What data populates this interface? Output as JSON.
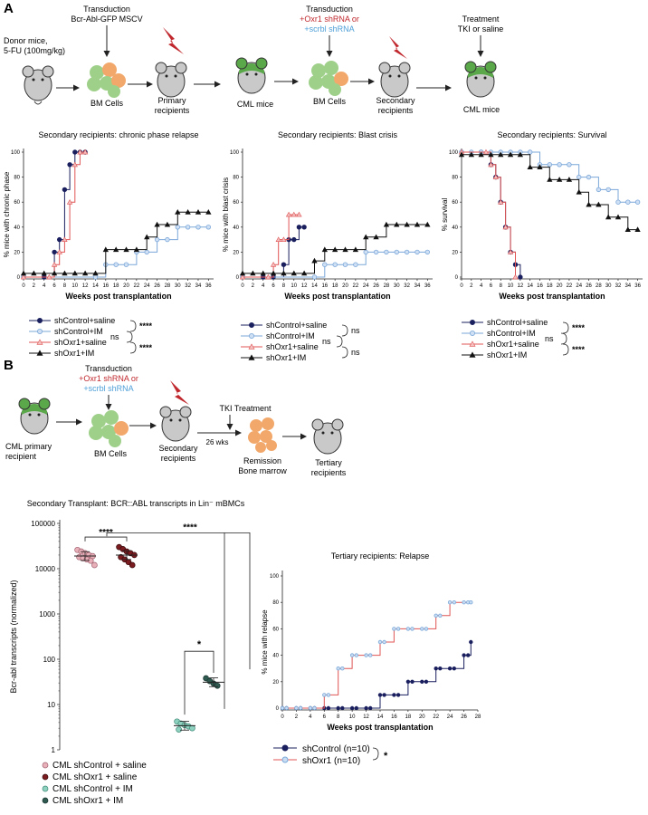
{
  "panels": {
    "a": {
      "letter": "A",
      "schematic": {
        "donor": "Donor mice,",
        "donor_dose": "5-FU (100mg/kg)",
        "transduction1": "Transduction",
        "transduction1_vector": "Bcr-Abl-GFP MSCV",
        "bm_cells_1": "BM Cells",
        "primary_1": "Primary",
        "primary_2": "recipients",
        "cml_mice_1": "CML mice",
        "transduction2": "Transduction",
        "transduction2_oxr1": "+Oxr1 shRNA or",
        "transduction2_scrbl": "+scrbl shRNA",
        "bm_cells_2": "BM Cells",
        "secondary_1": "Secondary",
        "secondary_2": "recipients",
        "treatment_1": "Treatment",
        "treatment_2": "TKI or saline",
        "cml_mice_2": "CML mice"
      },
      "legend": {
        "s1": "shControl+saline",
        "s2": "shControl+IM",
        "s3": "shOxr1+saline",
        "s4": "shOxr1+IM",
        "sig_top": "****",
        "sig_ns": "ns",
        "sig_bottom": "****",
        "sig_ns_a": "ns",
        "sig_ns_b": "ns"
      }
    },
    "b": {
      "letter": "B",
      "schematic": {
        "cml_1": "CML primary",
        "cml_2": "recipient",
        "transduction": "Transduction",
        "transduction_oxr1": "+Oxr1 shRNA or",
        "transduction_scrbl": "+scrbl shRNA",
        "bm_cells": "BM Cells",
        "secondary_1": "Secondary",
        "secondary_2": "recipients",
        "tki": "TKI Treatment",
        "weeks": "26 wks",
        "remission_1": "Remission",
        "remission_2": "Bone marrow",
        "tertiary_1": "Tertiary",
        "tertiary_2": "recipients"
      },
      "scatter_legend": {
        "g1": "CML shControl + saline",
        "g2": "CML shOxr1 + saline",
        "g3": "CML shControl + IM",
        "g4": "CML shOxr1 + IM"
      },
      "sig": {
        "s1": "****",
        "s2": "****",
        "s3": "*"
      },
      "relapse_legend": {
        "l1": "shControl (n=10)",
        "l2": "shOxr1 (n=10)",
        "sig": "*"
      }
    }
  },
  "colors": {
    "shControl_saline": "#1a1f5e",
    "shControl_IM": "#7ba7d9",
    "shOxr1_saline": "#e05555",
    "shOxr1_IM": "#111111",
    "scatter_ctrl_saline": "#e8b0b8",
    "scatter_oxr1_saline": "#7a1c20",
    "scatter_ctrl_IM": "#8fd1bf",
    "scatter_oxr1_IM": "#2e5a50",
    "mouse_gray": "#c9c9c9",
    "mouse_green": "#5aa84a",
    "bm_green": "#9fd08a",
    "bm_orange": "#f2a86b",
    "bolt": "#c0282e",
    "oxr1_text": "#c0282e",
    "scrbl_text": "#4fa0d8"
  },
  "chart_data": [
    {
      "type": "line",
      "title": "Secondary recipients: chronic phase relapse",
      "xlabel": "Weeks post transplantation",
      "ylabel": "% mice with chronic phase",
      "xlim": [
        0,
        37
      ],
      "ylim": [
        0,
        100
      ],
      "xticks": [
        0,
        2,
        4,
        6,
        8,
        10,
        12,
        14,
        16,
        18,
        20,
        22,
        24,
        26,
        28,
        30,
        32,
        34,
        36
      ],
      "yticks": [
        0,
        20,
        40,
        60,
        80,
        100
      ],
      "series": [
        {
          "name": "shControl+saline",
          "x": [
            0,
            4,
            6,
            7,
            8,
            9,
            10,
            11,
            12
          ],
          "values": [
            0,
            0,
            20,
            30,
            70,
            90,
            100,
            100,
            100
          ]
        },
        {
          "name": "shControl+IM",
          "x": [
            0,
            14,
            16,
            18,
            20,
            22,
            24,
            26,
            28,
            30,
            32,
            34,
            36
          ],
          "values": [
            0,
            0,
            10,
            10,
            10,
            20,
            20,
            30,
            30,
            40,
            40,
            40,
            40
          ]
        },
        {
          "name": "shOxr1+saline",
          "x": [
            0,
            5,
            6,
            7,
            8,
            9,
            10,
            11,
            12
          ],
          "values": [
            0,
            0,
            10,
            20,
            30,
            60,
            90,
            100,
            100
          ]
        },
        {
          "name": "shOxr1+IM",
          "x": [
            0,
            2,
            4,
            6,
            8,
            10,
            12,
            14,
            16,
            18,
            20,
            22,
            24,
            26,
            28,
            30,
            32,
            34,
            36
          ],
          "values": [
            3,
            3,
            3,
            3,
            3,
            3,
            3,
            3,
            22,
            22,
            22,
            22,
            32,
            42,
            42,
            52,
            52,
            52,
            52
          ]
        }
      ]
    },
    {
      "type": "line",
      "title": "Secondary recipients: Blast crisis",
      "xlabel": "Weeks post transplantation",
      "ylabel": "% mice with blast crisis",
      "xlim": [
        0,
        37
      ],
      "ylim": [
        0,
        100
      ],
      "xticks": [
        0,
        2,
        4,
        6,
        8,
        10,
        12,
        14,
        16,
        18,
        20,
        22,
        24,
        26,
        28,
        30,
        32,
        34,
        36
      ],
      "yticks": [
        0,
        20,
        40,
        60,
        80,
        100
      ],
      "series": [
        {
          "name": "shControl+saline",
          "x": [
            0,
            4,
            6,
            8,
            9,
            10,
            11,
            12
          ],
          "values": [
            0,
            0,
            0,
            10,
            30,
            30,
            40,
            40
          ]
        },
        {
          "name": "shControl+IM",
          "x": [
            0,
            14,
            16,
            18,
            20,
            22,
            24,
            26,
            28,
            30,
            32,
            34,
            36
          ],
          "values": [
            0,
            0,
            10,
            10,
            10,
            10,
            20,
            20,
            20,
            20,
            20,
            20,
            20
          ]
        },
        {
          "name": "shOxr1+saline",
          "x": [
            0,
            5,
            6,
            7,
            8,
            9,
            10,
            11
          ],
          "values": [
            0,
            0,
            10,
            30,
            30,
            50,
            50,
            50
          ]
        },
        {
          "name": "shOxr1+IM",
          "x": [
            0,
            2,
            4,
            6,
            8,
            10,
            12,
            14,
            16,
            18,
            20,
            22,
            24,
            26,
            28,
            30,
            32,
            34,
            36
          ],
          "values": [
            3,
            3,
            3,
            3,
            3,
            3,
            3,
            13,
            22,
            22,
            22,
            22,
            32,
            32,
            42,
            42,
            42,
            42,
            42
          ]
        }
      ]
    },
    {
      "type": "line",
      "title": "Secondary recipients: Survival",
      "xlabel": "Weeks post transplantation",
      "ylabel": "% survival",
      "xlim": [
        0,
        37
      ],
      "ylim": [
        0,
        100
      ],
      "xticks": [
        0,
        2,
        4,
        6,
        8,
        10,
        12,
        14,
        16,
        18,
        20,
        22,
        24,
        26,
        28,
        30,
        32,
        34,
        36
      ],
      "yticks": [
        0,
        20,
        40,
        60,
        80,
        100
      ],
      "series": [
        {
          "name": "shControl+saline",
          "x": [
            0,
            4,
            6,
            7,
            8,
            9,
            10,
            11,
            12
          ],
          "values": [
            100,
            100,
            90,
            80,
            60,
            40,
            20,
            10,
            0
          ]
        },
        {
          "name": "shControl+IM",
          "x": [
            0,
            2,
            4,
            6,
            8,
            10,
            12,
            14,
            16,
            18,
            20,
            22,
            24,
            26,
            28,
            30,
            32,
            34,
            36
          ],
          "values": [
            100,
            100,
            100,
            100,
            100,
            100,
            100,
            100,
            90,
            90,
            90,
            90,
            80,
            80,
            70,
            70,
            60,
            60,
            60
          ]
        },
        {
          "name": "shOxr1+saline",
          "x": [
            0,
            5,
            6,
            7,
            8,
            9,
            10,
            11
          ],
          "values": [
            100,
            100,
            90,
            80,
            60,
            40,
            20,
            0
          ]
        },
        {
          "name": "shOxr1+IM",
          "x": [
            0,
            2,
            4,
            6,
            8,
            10,
            12,
            14,
            16,
            18,
            20,
            22,
            24,
            26,
            28,
            30,
            32,
            34,
            36
          ],
          "values": [
            98,
            98,
            98,
            98,
            98,
            98,
            98,
            88,
            88,
            78,
            78,
            78,
            68,
            58,
            58,
            48,
            48,
            38,
            38
          ]
        }
      ]
    },
    {
      "type": "scatter",
      "title": "Secondary Transplant: BCR::ABL transcripts in Lin⁻ mBMCs",
      "ylabel": "Bcr-abl transcripts (normalized)",
      "yscale": "log",
      "ylim": [
        1,
        100000
      ],
      "yticks": [
        1,
        10,
        100,
        1000,
        10000,
        100000
      ],
      "ytick_labels": [
        "1",
        "10",
        "100",
        "1000",
        "10000",
        "100000"
      ],
      "groups": [
        {
          "name": "CML shControl + saline",
          "values": [
            26000,
            24000,
            22000,
            20000,
            19000,
            18000,
            17000,
            16000,
            15000,
            12000
          ],
          "mean": 19000
        },
        {
          "name": "CML shOxr1 + saline",
          "values": [
            30000,
            27000,
            24000,
            22000,
            20000,
            18000,
            16000,
            14000,
            12000
          ],
          "mean": 20000
        },
        {
          "name": "CML shControl + IM",
          "values": [
            4.2,
            3.8,
            3.5,
            3.3,
            3.0,
            2.8
          ],
          "mean": 3.4
        },
        {
          "name": "CML shOxr1 + IM",
          "values": [
            38,
            33,
            29,
            26
          ],
          "mean": 31
        }
      ]
    },
    {
      "type": "line",
      "title": "Tertiary recipients: Relapse",
      "xlabel": "Weeks post transplantation",
      "ylabel": "% mice with relapse",
      "xlim": [
        0,
        28
      ],
      "ylim": [
        0,
        100
      ],
      "xticks": [
        0,
        2,
        4,
        6,
        8,
        10,
        12,
        14,
        16,
        18,
        20,
        22,
        24,
        26,
        28
      ],
      "yticks": [
        0,
        20,
        40,
        60,
        80,
        100
      ],
      "series": [
        {
          "name": "shControl (n=10)",
          "x": [
            0,
            2,
            4,
            6,
            8,
            10,
            12,
            14,
            16,
            18,
            20,
            22,
            24,
            26,
            27
          ],
          "values": [
            0,
            0,
            0,
            0,
            0,
            0,
            0,
            10,
            10,
            20,
            20,
            30,
            30,
            40,
            50
          ]
        },
        {
          "name": "shOxr1 (n=10)",
          "x": [
            0,
            2,
            4,
            6,
            8,
            10,
            12,
            14,
            16,
            18,
            20,
            22,
            24,
            26,
            27
          ],
          "values": [
            0,
            0,
            0,
            10,
            30,
            40,
            40,
            50,
            60,
            60,
            60,
            70,
            80,
            80,
            80
          ]
        }
      ]
    }
  ]
}
